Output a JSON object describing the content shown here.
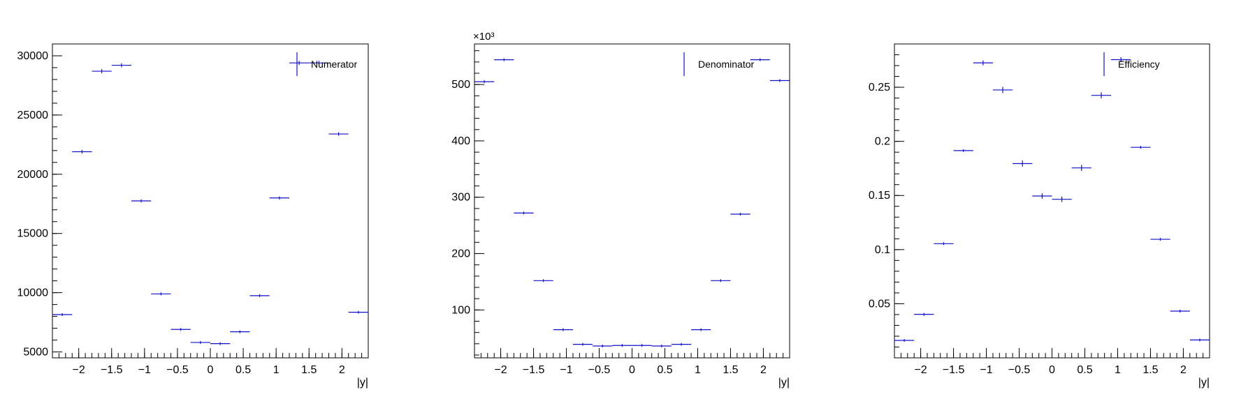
{
  "chart_data": [
    {
      "type": "scatter",
      "legend": "Numerator",
      "legend_position": "top-right",
      "xlabel": "|y|",
      "ylabel": "",
      "xlim": [
        -2.4,
        2.4
      ],
      "ylim": [
        4500,
        31000
      ],
      "x_ticks": [
        -2,
        -1.5,
        -1,
        -0.5,
        0,
        0.5,
        1,
        1.5,
        2
      ],
      "y_ticks": [
        5000,
        10000,
        15000,
        20000,
        25000,
        30000
      ],
      "y_multiplier": "",
      "bin_width": 0.3,
      "x": [
        -2.25,
        -1.95,
        -1.65,
        -1.35,
        -1.05,
        -0.75,
        -0.45,
        -0.15,
        0.15,
        0.45,
        0.75,
        1.05,
        1.35,
        1.65,
        1.95,
        2.25
      ],
      "values": [
        8150,
        21900,
        28700,
        29200,
        17750,
        9900,
        6900,
        5800,
        5700,
        6700,
        9750,
        18000,
        29400,
        29400,
        23400,
        8350
      ],
      "errors": [
        110,
        150,
        170,
        170,
        130,
        100,
        80,
        75,
        75,
        80,
        100,
        130,
        170,
        170,
        150,
        110
      ]
    },
    {
      "type": "scatter",
      "legend": "Denominator",
      "legend_position": "top-right",
      "xlabel": "|y|",
      "ylabel": "",
      "xlim": [
        -2.4,
        2.4
      ],
      "ylim": [
        15,
        572
      ],
      "x_ticks": [
        -2,
        -1.5,
        -1,
        -0.5,
        0,
        0.5,
        1,
        1.5,
        2
      ],
      "y_ticks": [
        100,
        200,
        300,
        400,
        500
      ],
      "y_multiplier": "×10³",
      "bin_width": 0.3,
      "x": [
        -2.25,
        -1.95,
        -1.65,
        -1.35,
        -1.05,
        -0.75,
        -0.45,
        -0.15,
        0.15,
        0.45,
        0.75,
        1.05,
        1.35,
        1.65,
        1.95,
        2.25
      ],
      "values": [
        505,
        544,
        272,
        152,
        65,
        39,
        36,
        37,
        37,
        36,
        39,
        65,
        152,
        270,
        544,
        507
      ],
      "errors": [
        0.7,
        0.7,
        0.5,
        0.4,
        0.3,
        0.2,
        0.2,
        0.2,
        0.2,
        0.2,
        0.2,
        0.3,
        0.4,
        0.5,
        0.7,
        0.7
      ]
    },
    {
      "type": "scatter",
      "legend": "Efficiency",
      "legend_position": "top-right",
      "xlabel": "|y|",
      "ylabel": "",
      "xlim": [
        -2.4,
        2.4
      ],
      "ylim": [
        0.0,
        0.29
      ],
      "x_ticks": [
        -2,
        -1.5,
        -1,
        -0.5,
        0,
        0.5,
        1,
        1.5,
        2
      ],
      "y_ticks": [
        0.05,
        0.1,
        0.15,
        0.2,
        0.25
      ],
      "y_multiplier": "",
      "bin_width": 0.3,
      "x": [
        -2.25,
        -1.95,
        -1.65,
        -1.35,
        -1.05,
        -0.75,
        -0.45,
        -0.15,
        0.15,
        0.45,
        0.75,
        1.05,
        1.35,
        1.65,
        1.95,
        2.25
      ],
      "values": [
        0.0161,
        0.0402,
        0.1055,
        0.1915,
        0.2725,
        0.2475,
        0.1795,
        0.1495,
        0.1465,
        0.1755,
        0.2425,
        0.2755,
        0.1945,
        0.1095,
        0.0432,
        0.0165
      ],
      "errors": [
        0.0002,
        0.0004,
        0.0008,
        0.0012,
        0.0022,
        0.0028,
        0.0028,
        0.0025,
        0.0025,
        0.0028,
        0.0028,
        0.0022,
        0.0012,
        0.0008,
        0.0004,
        0.0002
      ]
    }
  ]
}
